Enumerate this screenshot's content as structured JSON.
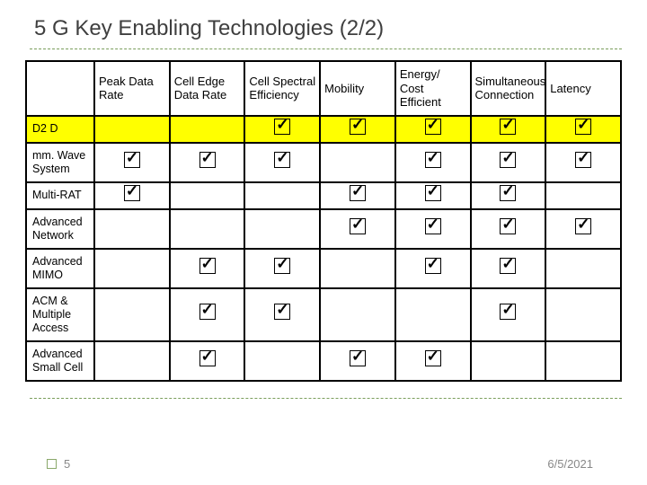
{
  "title": "5 G Key Enabling Technologies (2/2)",
  "columns": [
    "",
    "Peak Data Rate",
    "Cell Edge Data Rate",
    "Cell Spectral Efficiency",
    "Mobility",
    "Energy/ Cost Efficient",
    "Simultaneous Connection",
    "Latency"
  ],
  "rows": [
    {
      "label": "D2 D",
      "highlight": true,
      "checks": [
        0,
        0,
        1,
        1,
        1,
        1,
        1
      ]
    },
    {
      "label": "mm. Wave System",
      "highlight": false,
      "checks": [
        1,
        1,
        1,
        0,
        1,
        1,
        1
      ]
    },
    {
      "label": "Multi-RAT",
      "highlight": false,
      "checks": [
        1,
        0,
        0,
        1,
        1,
        1,
        0
      ]
    },
    {
      "label": "Advanced Network",
      "highlight": false,
      "checks": [
        0,
        0,
        0,
        1,
        1,
        1,
        1
      ]
    },
    {
      "label": "Advanced MIMO",
      "highlight": false,
      "checks": [
        0,
        1,
        1,
        0,
        1,
        1,
        0
      ]
    },
    {
      "label": "ACM & Multiple Access",
      "highlight": false,
      "checks": [
        0,
        1,
        1,
        0,
        0,
        1,
        0
      ]
    },
    {
      "label": "Advanced Small Cell",
      "highlight": false,
      "checks": [
        0,
        1,
        0,
        1,
        1,
        0,
        0
      ]
    }
  ],
  "footer": {
    "page": "5",
    "date": "6/5/2021"
  },
  "colors": {
    "highlight": "#ffff00",
    "border": "#000000",
    "title": "#3f3f3f",
    "divider": "#7a9e5c"
  }
}
